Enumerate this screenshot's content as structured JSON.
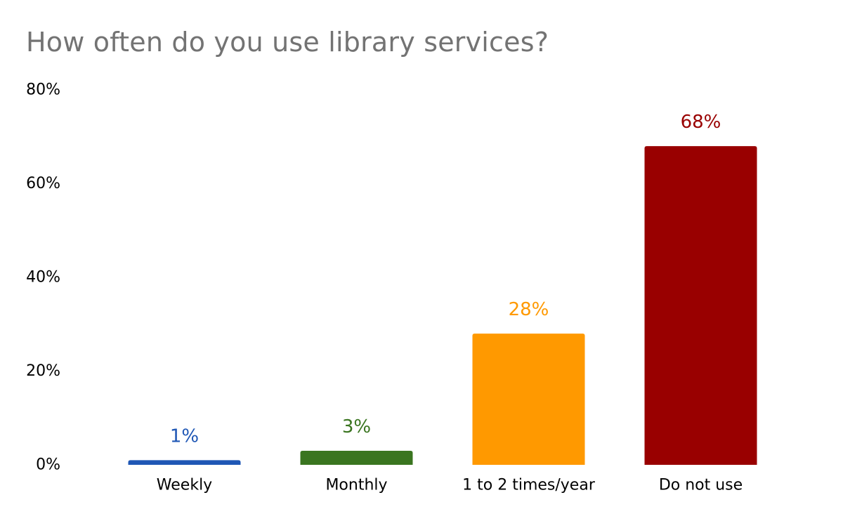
{
  "chart_data": {
    "type": "bar",
    "title": "How often do you use library services?",
    "xlabel": "",
    "ylabel": "",
    "categories": [
      "Weekly",
      "Monthly",
      "1 to 2 times/year",
      "Do not use"
    ],
    "values": [
      1,
      3,
      28,
      68
    ],
    "data_labels": [
      "1%",
      "3%",
      "28%",
      "68%"
    ],
    "colors": [
      "#1f57b5",
      "#3a7520",
      "#ff9900",
      "#990000"
    ],
    "ylim": [
      0,
      80
    ],
    "yticks": [
      0,
      20,
      40,
      60,
      80
    ],
    "ytick_labels": [
      "0%",
      "20%",
      "40%",
      "60%",
      "80%"
    ],
    "grid": false,
    "legend": "none"
  }
}
